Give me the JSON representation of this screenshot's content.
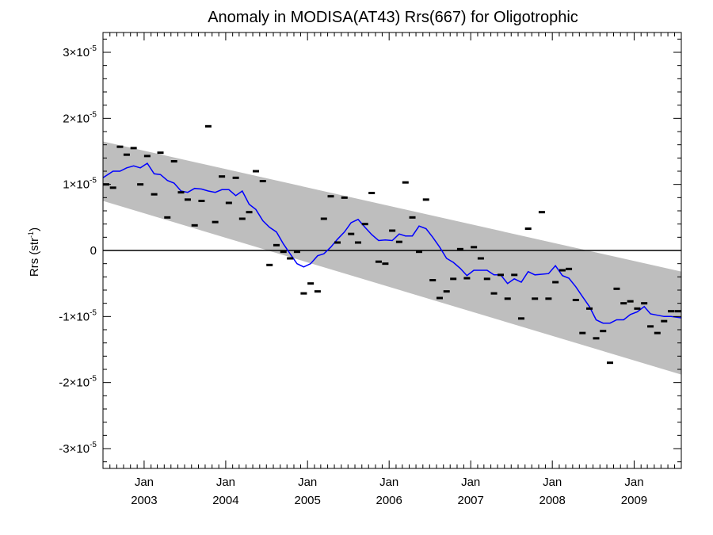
{
  "chart_data": {
    "type": "scatter",
    "title": "Anomaly in MODISA(AT43) Rrs(667) for Oligotrophic",
    "ylabel": "Rrs (str",
    "ylabel_sup": "-1",
    "ylabel_close": ")",
    "xlim": [
      "2002-07-01",
      "2009-07-31"
    ],
    "ylim": [
      -3.3e-05,
      3.3e-05
    ],
    "grid": false,
    "y_ticks": [
      {
        "value": 3e-05,
        "mant": "3×10",
        "exp": "-5"
      },
      {
        "value": 2e-05,
        "mant": "2×10",
        "exp": "-5"
      },
      {
        "value": 1e-05,
        "mant": "1×10",
        "exp": "-5"
      },
      {
        "value": 0,
        "mant": "0",
        "exp": ""
      },
      {
        "value": -1e-05,
        "mant": "-1×10",
        "exp": "-5"
      },
      {
        "value": -2e-05,
        "mant": "-2×10",
        "exp": "-5"
      },
      {
        "value": -3e-05,
        "mant": "-3×10",
        "exp": "-5"
      }
    ],
    "x_ticks": [
      {
        "date": "2003-01-01",
        "month": "Jan",
        "year": "2003"
      },
      {
        "date": "2004-01-01",
        "month": "Jan",
        "year": "2004"
      },
      {
        "date": "2005-01-01",
        "month": "Jan",
        "year": "2005"
      },
      {
        "date": "2006-01-01",
        "month": "Jan",
        "year": "2006"
      },
      {
        "date": "2007-01-01",
        "month": "Jan",
        "year": "2007"
      },
      {
        "date": "2008-01-01",
        "month": "Jan",
        "year": "2008"
      },
      {
        "date": "2009-01-01",
        "month": "Jan",
        "year": "2009"
      }
    ],
    "band": {
      "color": "#bebebe",
      "upper": [
        [
          "2002-07-01",
          1.65e-05
        ],
        [
          "2009-07-31",
          -3.2e-06
        ]
      ],
      "lower": [
        [
          "2002-07-01",
          7.5e-06
        ],
        [
          "2009-07-31",
          -1.88e-05
        ]
      ]
    },
    "zero_line": 0,
    "series": [
      {
        "style": "dash-markers",
        "color": "#000000",
        "x": [
          "2002-07-15",
          "2002-08-15",
          "2002-09-15",
          "2002-10-15",
          "2002-11-15",
          "2002-12-15",
          "2003-01-15",
          "2003-02-15",
          "2003-03-15",
          "2003-04-15",
          "2003-05-15",
          "2003-06-15",
          "2003-07-15",
          "2003-08-15",
          "2003-09-15",
          "2003-10-15",
          "2003-11-15",
          "2003-12-15",
          "2004-01-15",
          "2004-02-15",
          "2004-03-15",
          "2004-04-15",
          "2004-05-15",
          "2004-06-15",
          "2004-07-15",
          "2004-08-15",
          "2004-09-15",
          "2004-10-15",
          "2004-11-15",
          "2004-12-15",
          "2005-01-15",
          "2005-02-15",
          "2005-03-15",
          "2005-04-15",
          "2005-05-15",
          "2005-06-15",
          "2005-07-15",
          "2005-08-15",
          "2005-09-15",
          "2005-10-15",
          "2005-11-15",
          "2005-12-15",
          "2006-01-15",
          "2006-02-15",
          "2006-03-15",
          "2006-04-15",
          "2006-05-15",
          "2006-06-15",
          "2006-07-15",
          "2006-08-15",
          "2006-09-15",
          "2006-10-15",
          "2006-11-15",
          "2006-12-15",
          "2007-01-15",
          "2007-02-15",
          "2007-03-15",
          "2007-04-15",
          "2007-05-15",
          "2007-06-15",
          "2007-07-15",
          "2007-08-15",
          "2007-09-15",
          "2007-10-15",
          "2007-11-15",
          "2007-12-15",
          "2008-01-15",
          "2008-02-15",
          "2008-03-15",
          "2008-04-15",
          "2008-05-15",
          "2008-06-15",
          "2008-07-15",
          "2008-08-15",
          "2008-09-15",
          "2008-10-15",
          "2008-11-15",
          "2008-12-15",
          "2009-01-15",
          "2009-02-15",
          "2009-03-15",
          "2009-04-15",
          "2009-05-15",
          "2009-06-15",
          "2009-07-15"
        ],
        "y": [
          1e-05,
          9.5e-06,
          1.57e-05,
          1.45e-05,
          1.55e-05,
          1e-05,
          1.43e-05,
          8.5e-06,
          1.48e-05,
          5e-06,
          1.35e-05,
          8.8e-06,
          7.7e-06,
          3.8e-06,
          7.5e-06,
          1.88e-05,
          4.3e-06,
          1.12e-05,
          7.2e-06,
          1.1e-05,
          4.8e-06,
          5.8e-06,
          1.2e-05,
          1.05e-05,
          -2.2e-06,
          8e-07,
          -2e-07,
          -1.2e-06,
          -2e-07,
          -6.5e-06,
          -5e-06,
          -6.2e-06,
          4.8e-06,
          8.2e-06,
          1.2e-06,
          8e-06,
          2.5e-06,
          1.2e-06,
          4e-06,
          8.7e-06,
          -1.7e-06,
          -2e-06,
          3e-06,
          1.3e-06,
          1.03e-05,
          5e-06,
          -2e-07,
          7.7e-06,
          -4.5e-06,
          -7.2e-06,
          -6.2e-06,
          -4.3e-06,
          2e-07,
          -4.2e-06,
          5e-07,
          -1.2e-06,
          -4.3e-06,
          -6.5e-06,
          -3.7e-06,
          -7.3e-06,
          -3.7e-06,
          -1.03e-05,
          3.3e-06,
          -7.3e-06,
          5.8e-06,
          -7.3e-06,
          -4.8e-06,
          -3e-06,
          -2.8e-06,
          -7.5e-06,
          -1.25e-05,
          -8.8e-06,
          -1.33e-05,
          -1.22e-05,
          -1.7e-05,
          -5.8e-06,
          -8e-06,
          -7.7e-06,
          -8.8e-06,
          -8e-06,
          -1.15e-05,
          -1.25e-05,
          -1.07e-05,
          -9.2e-06,
          -9.2e-06
        ]
      },
      {
        "style": "line",
        "color": "#0000ff",
        "x": [
          "2002-07-01",
          "2002-08-15",
          "2002-09-15",
          "2002-10-15",
          "2002-11-15",
          "2002-12-15",
          "2003-01-15",
          "2003-02-15",
          "2003-03-15",
          "2003-04-15",
          "2003-05-15",
          "2003-06-15",
          "2003-07-15",
          "2003-08-15",
          "2003-09-15",
          "2003-10-15",
          "2003-11-15",
          "2003-12-15",
          "2004-01-15",
          "2004-02-15",
          "2004-03-15",
          "2004-04-15",
          "2004-05-15",
          "2004-06-15",
          "2004-07-15",
          "2004-08-15",
          "2004-09-15",
          "2004-10-15",
          "2004-11-15",
          "2004-12-15",
          "2005-01-15",
          "2005-02-15",
          "2005-03-15",
          "2005-04-15",
          "2005-05-15",
          "2005-06-15",
          "2005-07-15",
          "2005-08-15",
          "2005-09-15",
          "2005-10-15",
          "2005-11-15",
          "2005-12-15",
          "2006-01-15",
          "2006-02-15",
          "2006-03-15",
          "2006-04-15",
          "2006-05-15",
          "2006-06-15",
          "2006-07-15",
          "2006-08-15",
          "2006-09-15",
          "2006-10-15",
          "2006-11-15",
          "2006-12-15",
          "2007-01-15",
          "2007-02-15",
          "2007-03-15",
          "2007-04-15",
          "2007-05-15",
          "2007-06-15",
          "2007-07-15",
          "2007-08-15",
          "2007-09-15",
          "2007-10-15",
          "2007-11-15",
          "2007-12-15",
          "2008-01-15",
          "2008-02-15",
          "2008-03-15",
          "2008-04-15",
          "2008-05-15",
          "2008-06-15",
          "2008-07-15",
          "2008-08-15",
          "2008-09-15",
          "2008-10-15",
          "2008-11-15",
          "2008-12-15",
          "2009-01-15",
          "2009-02-15",
          "2009-03-15",
          "2009-04-15",
          "2009-05-15",
          "2009-06-15",
          "2009-07-31"
        ],
        "y": [
          1.1e-05,
          1.2e-05,
          1.2e-05,
          1.25e-05,
          1.28e-05,
          1.25e-05,
          1.32e-05,
          1.16e-05,
          1.15e-05,
          1.06e-05,
          1.02e-05,
          9e-06,
          8.8e-06,
          9.4e-06,
          9.3e-06,
          9e-06,
          8.8e-06,
          9.2e-06,
          9.2e-06,
          8.3e-06,
          9e-06,
          7e-06,
          6.2e-06,
          4.5e-06,
          3.5e-06,
          2.8e-06,
          1e-06,
          -5e-07,
          -2e-06,
          -2.5e-06,
          -2e-06,
          -8e-07,
          -5e-07,
          5e-07,
          1.7e-06,
          2.8e-06,
          4.2e-06,
          4.7e-06,
          3.5e-06,
          2.4e-06,
          1.5e-06,
          1.6e-06,
          1.5e-06,
          2.5e-06,
          2.2e-06,
          2.2e-06,
          3.7e-06,
          3.3e-06,
          2e-06,
          5e-07,
          -1.2e-06,
          -1.8e-06,
          -2.7e-06,
          -3.8e-06,
          -3e-06,
          -3e-06,
          -3e-06,
          -3.7e-06,
          -3.7e-06,
          -5e-06,
          -4.3e-06,
          -4.8e-06,
          -3.2e-06,
          -3.7e-06,
          -3.6e-06,
          -3.5e-06,
          -2.3e-06,
          -3.8e-06,
          -4.2e-06,
          -5.5e-06,
          -7e-06,
          -8.5e-06,
          -1.05e-05,
          -1.1e-05,
          -1.1e-05,
          -1.05e-05,
          -1.05e-05,
          -9.7e-06,
          -9.3e-06,
          -8.5e-06,
          -9.6e-06,
          -9.8e-06,
          -1e-05,
          -1e-05,
          -1.02e-05
        ]
      }
    ]
  }
}
